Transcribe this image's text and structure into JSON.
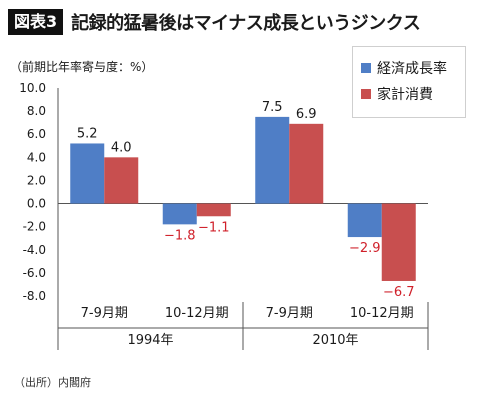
{
  "header": {
    "figure_label": "図表3",
    "title": "記録的猛暑後はマイナス成長というジンクス"
  },
  "unit_label": "（前期比年率寄与度：%）",
  "source": "（出所）内閣府",
  "colors": {
    "gdp": "#4f7ec6",
    "consumption": "#c84f4f",
    "negative_label": "#d0202a",
    "positive_label": "#1a1a1a",
    "axis": "#555555"
  },
  "chart_data": {
    "type": "bar",
    "title": "記録的猛暑後はマイナス成長というジンクス",
    "ylabel": "（前期比年率寄与度：%）",
    "xlabel": "",
    "ylim": [
      -8.0,
      10.0
    ],
    "yticks": [
      "10.0",
      "8.0",
      "6.0",
      "4.0",
      "2.0",
      "0.0",
      "-2.0",
      "-4.0",
      "-6.0",
      "-8.0"
    ],
    "legend_position": "top-right",
    "categories": [
      "7-9月期",
      "10-12月期",
      "7-9月期",
      "10-12月期"
    ],
    "groups": [
      {
        "label": "1994年",
        "categories": [
          "7-9月期",
          "10-12月期"
        ]
      },
      {
        "label": "2010年",
        "categories": [
          "7-9月期",
          "10-12月期"
        ]
      }
    ],
    "series": [
      {
        "name": "経済成長率",
        "values": [
          5.2,
          -1.8,
          7.5,
          -2.9
        ],
        "labels": [
          "5.2",
          "−1.8",
          "7.5",
          "−2.9"
        ]
      },
      {
        "name": "家計消費",
        "values": [
          4.0,
          -1.1,
          6.9,
          -6.7
        ],
        "labels": [
          "4.0",
          "−1.1",
          "6.9",
          "−6.7"
        ]
      }
    ]
  }
}
